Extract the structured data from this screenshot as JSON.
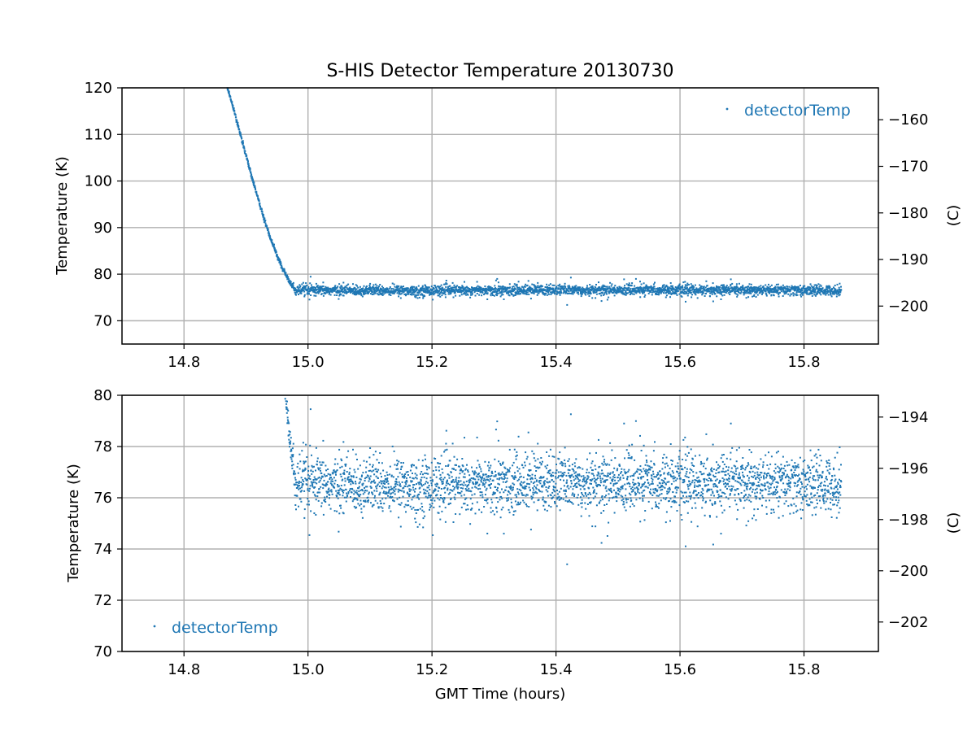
{
  "figure": {
    "title": "S-HIS Detector Temperature 20130730",
    "series_color": "#1f77b4"
  },
  "chart_data": [
    {
      "type": "scatter",
      "panel": "top",
      "title": "S-HIS Detector Temperature 20130730",
      "xlabel": "",
      "ylabel": "Temperature (K)",
      "ylabel_right": "(C)",
      "xlim": [
        14.7,
        15.92
      ],
      "ylim": [
        65,
        120
      ],
      "ylim_right": [
        -208.15,
        -153.15
      ],
      "xticks": [
        "14.8",
        "15.0",
        "15.2",
        "15.4",
        "15.6",
        "15.8"
      ],
      "yticks": [
        "70",
        "80",
        "90",
        "100",
        "110",
        "120"
      ],
      "yticks_right": [
        "−200",
        "−190",
        "−180",
        "−170",
        "−160"
      ],
      "grid": true,
      "legend": {
        "label": "detectorTemp",
        "placement": "top-right"
      },
      "series": [
        {
          "name": "detectorTemp",
          "description": "cooldown from ~120 K at 14.87 h to ~76.5 K at ~14.98 h, then steady ~76.5 K with noise until 15.86 h",
          "key_points": [
            [
              14.87,
              120
            ],
            [
              14.88,
              115.5
            ],
            [
              14.89,
              110.5
            ],
            [
              14.9,
              105.5
            ],
            [
              14.91,
              100.5
            ],
            [
              14.92,
              96
            ],
            [
              14.93,
              91.5
            ],
            [
              14.94,
              87.5
            ],
            [
              14.95,
              84
            ],
            [
              14.96,
              81
            ],
            [
              14.97,
              78.5
            ],
            [
              14.98,
              76.5
            ],
            [
              15.2,
              76.5
            ],
            [
              15.4,
              76.6
            ],
            [
              15.6,
              76.6
            ],
            [
              15.86,
              76.5
            ]
          ]
        }
      ]
    },
    {
      "type": "scatter",
      "panel": "bottom",
      "xlabel": "GMT Time (hours)",
      "ylabel": "Temperature (K)",
      "ylabel_right": "(C)",
      "xlim": [
        14.7,
        15.92
      ],
      "ylim": [
        70,
        80
      ],
      "ylim_right": [
        -203.15,
        -193.15
      ],
      "xticks": [
        "14.8",
        "15.0",
        "15.2",
        "15.4",
        "15.6",
        "15.8"
      ],
      "yticks": [
        "70",
        "72",
        "74",
        "76",
        "78",
        "80"
      ],
      "yticks_right": [
        "−202",
        "−200",
        "−198",
        "−196",
        "−194"
      ],
      "grid": true,
      "legend": {
        "label": "detectorTemp",
        "placement": "bottom-left"
      },
      "series": [
        {
          "name": "detectorTemp",
          "description": "zoomed view: steep drop from 80 K near 14.965 h, then noisy plateau around 76.5 K (mostly 75.5–77.5, occasional 74.5–79.4)",
          "key_points": [
            [
              14.965,
              80
            ],
            [
              14.97,
              78.8
            ],
            [
              14.975,
              77.2
            ],
            [
              14.98,
              76.4
            ],
            [
              15.2,
              76.5
            ],
            [
              15.4,
              76.6
            ],
            [
              15.6,
              76.6
            ],
            [
              15.86,
              76.5
            ]
          ]
        }
      ]
    }
  ]
}
